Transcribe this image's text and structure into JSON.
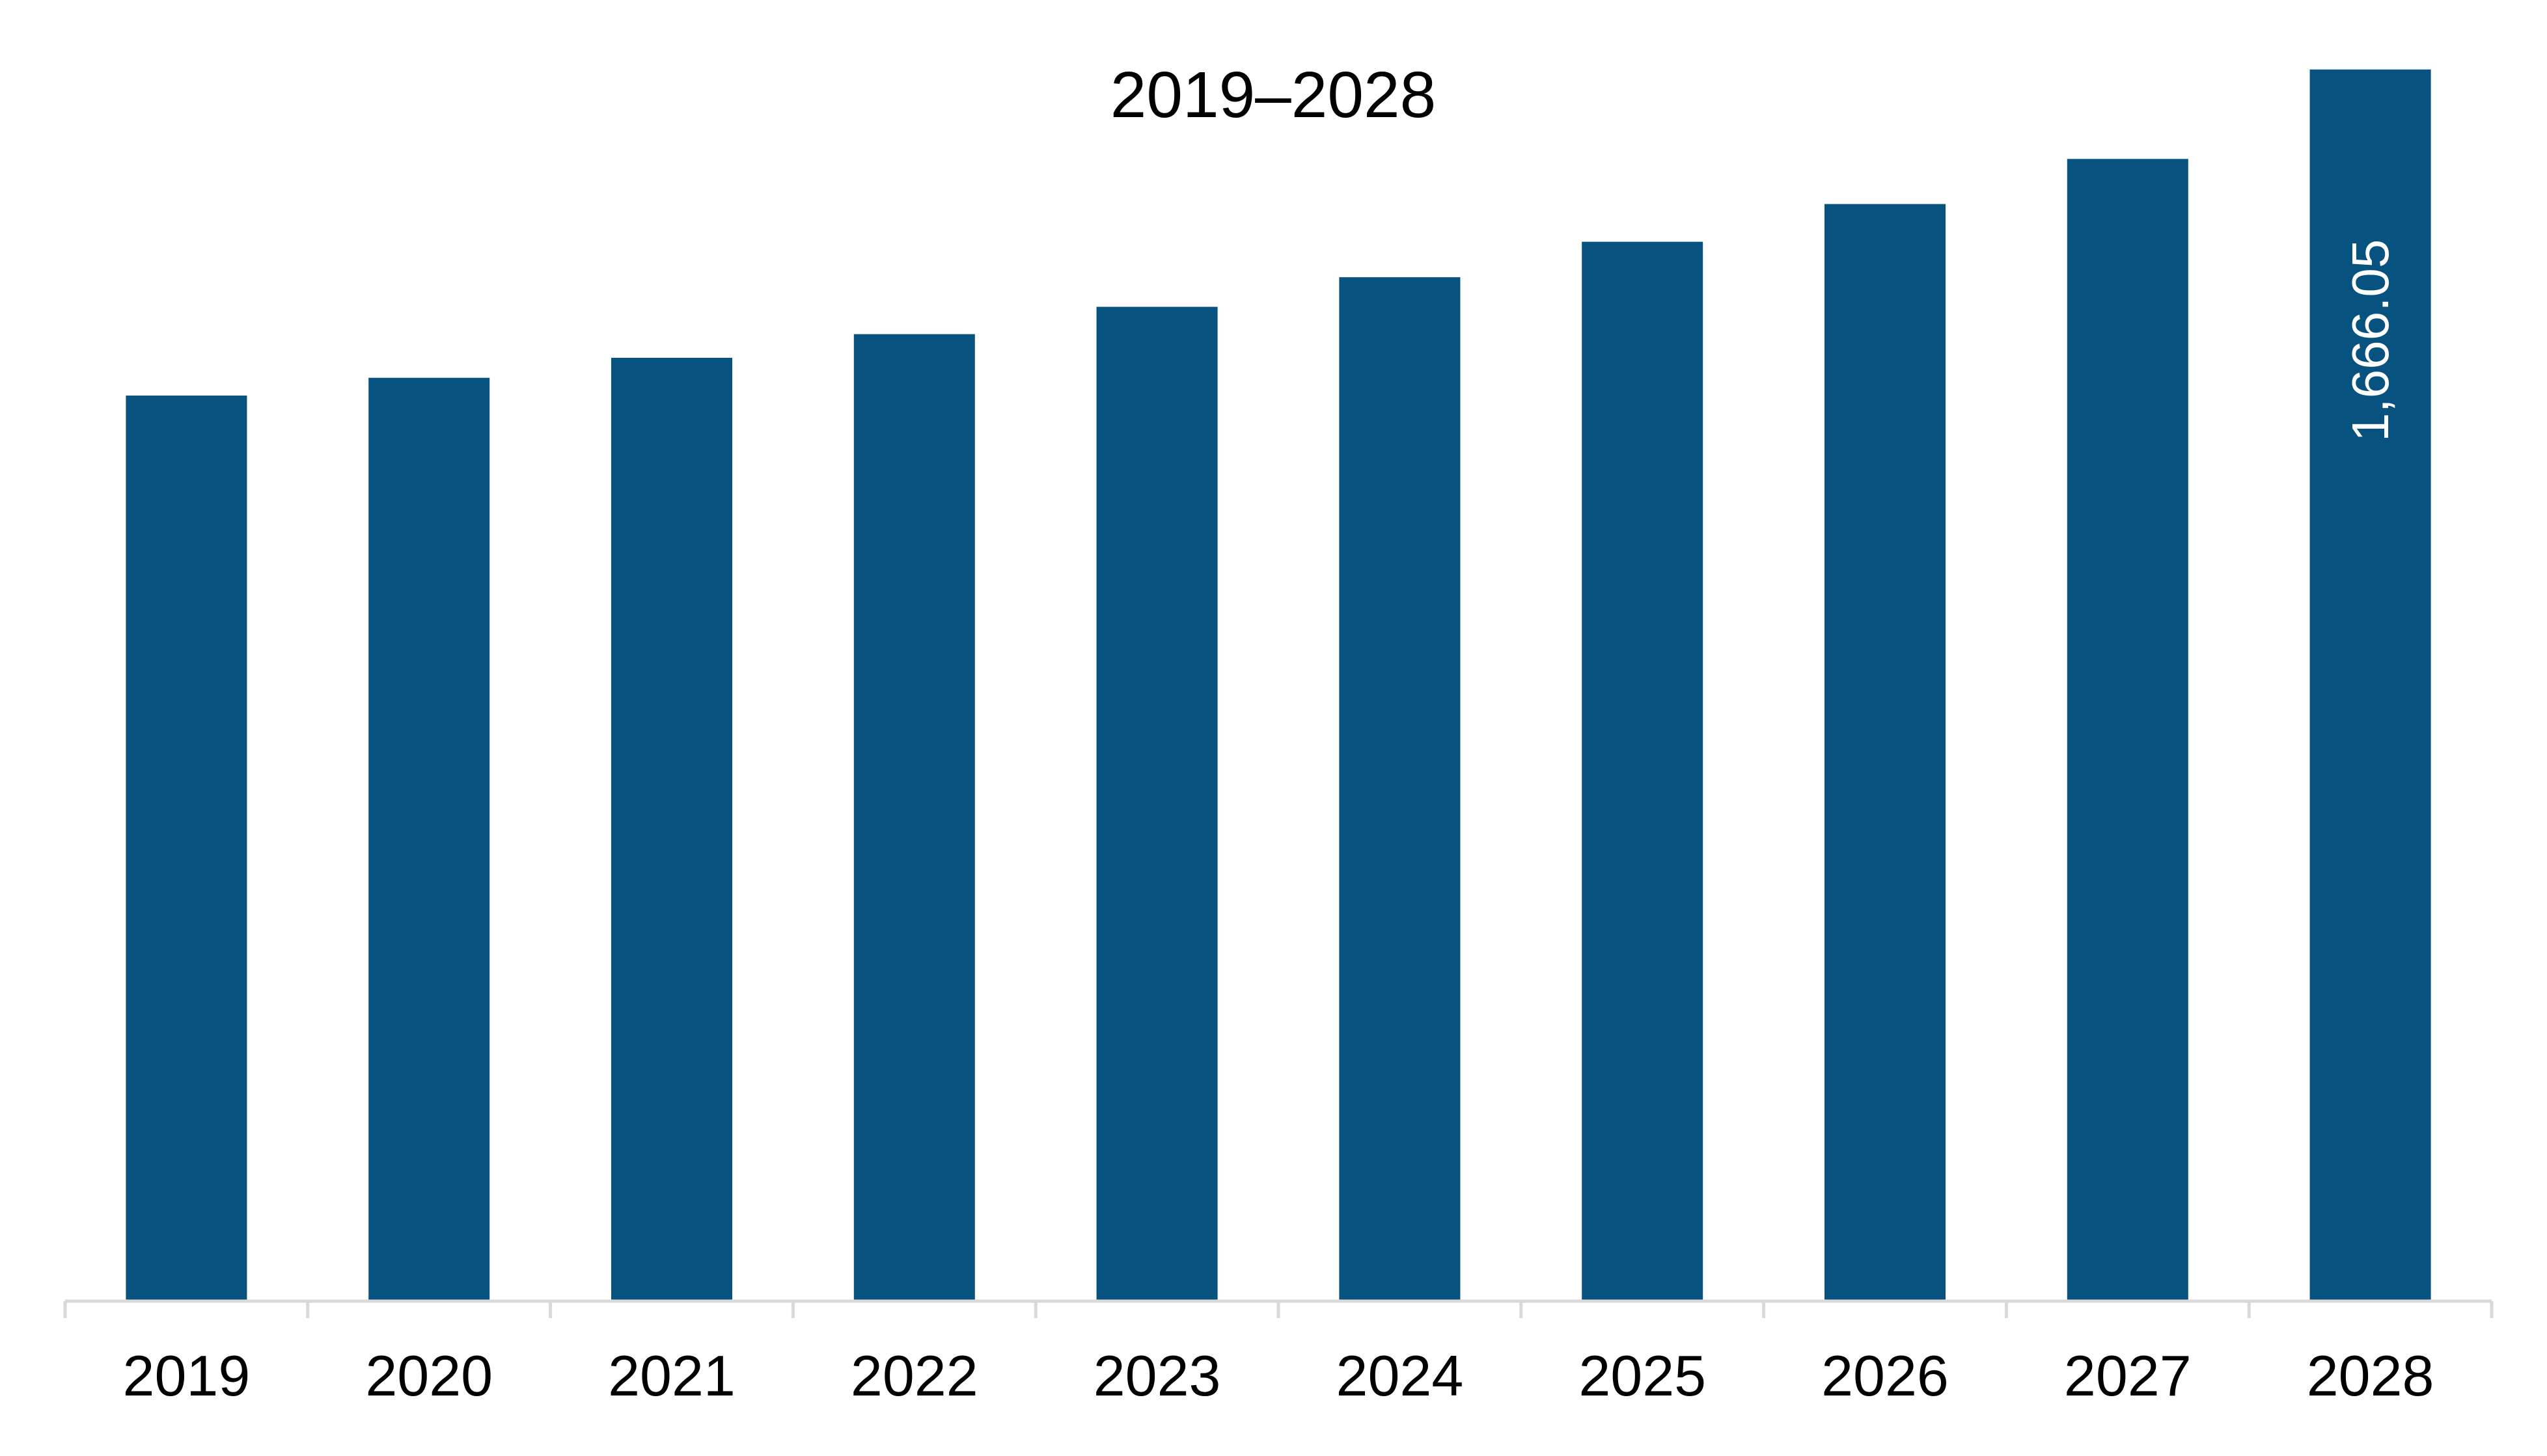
{
  "chart_data": {
    "type": "bar",
    "title": "2019–2028",
    "xlabel": "",
    "ylabel": "",
    "categories": [
      "2019",
      "2020",
      "2021",
      "2022",
      "2023",
      "2024",
      "2025",
      "2026",
      "2027",
      "2028"
    ],
    "values": [
      1225,
      1249,
      1276,
      1308,
      1345,
      1385,
      1433,
      1484,
      1545,
      1666.05
    ],
    "ylim": [
      0,
      1760
    ],
    "grid": false,
    "legend": "none",
    "data_labels": [
      {
        "category": "2028",
        "text": "1,666.05"
      }
    ],
    "colors": {
      "bar": "#07527E",
      "axis": "#D9D9D9",
      "text": "#000000",
      "data_label": "#FFFFFF"
    }
  }
}
